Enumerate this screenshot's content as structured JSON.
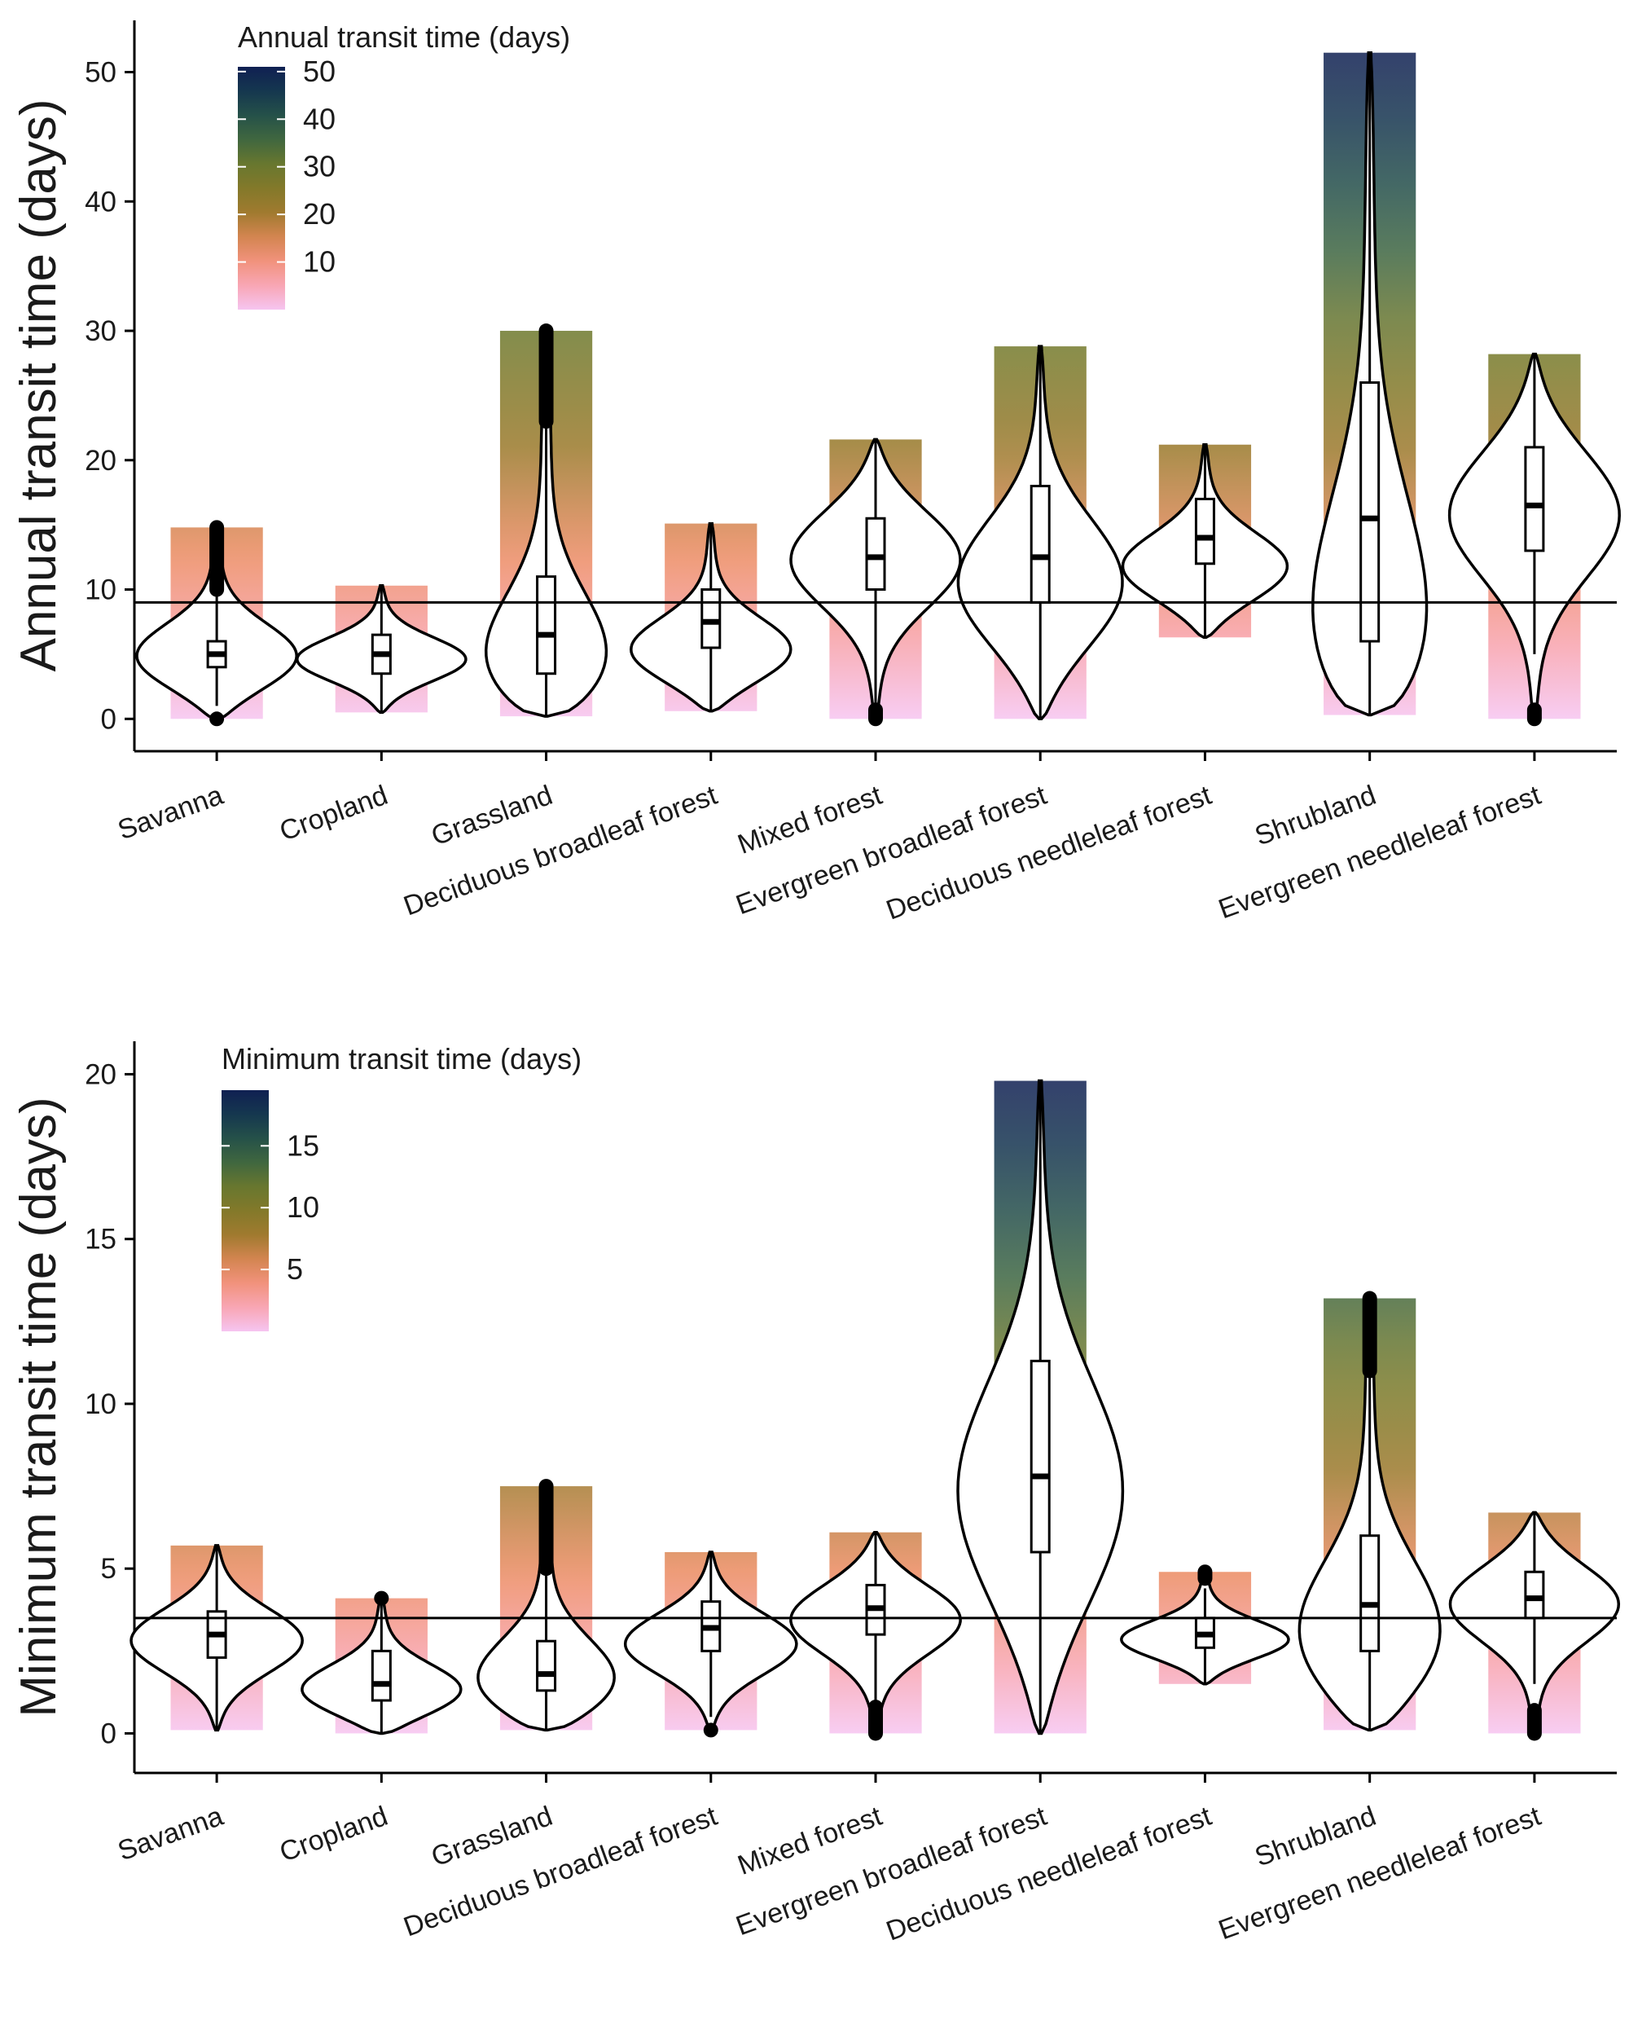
{
  "chart_data": [
    {
      "type": "violin",
      "ylabel": "Annual transit time (days)",
      "ylim": [
        -2.5,
        54
      ],
      "yticks": [
        0,
        10,
        20,
        30,
        40,
        50
      ],
      "reference_line": 9,
      "legend": {
        "title": "Annual transit time (days)",
        "placement": "top-left",
        "ticks": [
          10,
          20,
          30,
          40,
          50
        ],
        "range": [
          0,
          51
        ]
      },
      "categories": [
        "Savanna",
        "Cropland",
        "Grassland",
        "Deciduous broadleaf forest",
        "Mixed forest",
        "Evergreen broadleaf forest",
        "Deciduous needleleaf forest",
        "Shrubland",
        "Evergreen needleleaf forest"
      ],
      "groups": [
        {
          "min": 0,
          "max": 14.8,
          "q1": 4,
          "median": 5,
          "q3": 6,
          "whisker_low": 1,
          "whisker_high": 10,
          "outliers_low": [
            0
          ],
          "outliers_high": [
            10,
            14.8
          ],
          "mode": 4.5
        },
        {
          "min": 0.5,
          "max": 10.3,
          "q1": 3.5,
          "median": 5,
          "q3": 6.5,
          "whisker_low": 0.5,
          "whisker_high": 10.3,
          "outliers_low": [],
          "outliers_high": [],
          "mode": 4.5
        },
        {
          "min": 0.2,
          "max": 30,
          "q1": 3.5,
          "median": 6.5,
          "q3": 11,
          "whisker_low": 0.2,
          "whisker_high": 23,
          "outliers_low": [],
          "outliers_high": [
            23,
            30
          ],
          "mode": 3
        },
        {
          "min": 0.6,
          "max": 15.1,
          "q1": 5.5,
          "median": 7.5,
          "q3": 10,
          "whisker_low": 0.6,
          "whisker_high": 15.1,
          "outliers_low": [],
          "outliers_high": [],
          "mode": 5
        },
        {
          "min": 0,
          "max": 21.6,
          "q1": 10,
          "median": 12.5,
          "q3": 15.5,
          "whisker_low": 1,
          "whisker_high": 21.6,
          "outliers_low": [
            0,
            0.7
          ],
          "outliers_high": [],
          "mode": 12.5
        },
        {
          "min": 0,
          "max": 28.8,
          "q1": 9,
          "median": 12.5,
          "q3": 18,
          "whisker_low": 0,
          "whisker_high": 28.8,
          "outliers_low": [],
          "outliers_high": [],
          "mode": 10
        },
        {
          "min": 6.3,
          "max": 21.2,
          "q1": 12,
          "median": 14,
          "q3": 17,
          "whisker_low": 6.3,
          "whisker_high": 21.2,
          "outliers_low": [],
          "outliers_high": [],
          "mode": 11.5
        },
        {
          "min": 0.3,
          "max": 51.5,
          "q1": 6,
          "median": 15.5,
          "q3": 26,
          "whisker_low": 0.3,
          "whisker_high": 51.5,
          "outliers_low": [],
          "outliers_high": [],
          "mode": 3
        },
        {
          "min": 0,
          "max": 28.2,
          "q1": 13,
          "median": 16.5,
          "q3": 21,
          "whisker_low": 5,
          "whisker_high": 28.2,
          "outliers_low": [
            0,
            0.7
          ],
          "outliers_high": [],
          "mode": 16
        }
      ]
    },
    {
      "type": "violin",
      "ylabel": "Minimum transit time (days)",
      "ylim": [
        -1.2,
        21
      ],
      "yticks": [
        0,
        5,
        10,
        15,
        20
      ],
      "reference_line": 3.5,
      "legend": {
        "title": "Minimum transit time (days)",
        "placement": "top-left",
        "ticks": [
          5,
          10,
          15
        ],
        "range": [
          0,
          19.5
        ]
      },
      "categories": [
        "Savanna",
        "Cropland",
        "Grassland",
        "Deciduous broadleaf forest",
        "Mixed forest",
        "Evergreen broadleaf forest",
        "Deciduous needleleaf forest",
        "Shrubland",
        "Evergreen needleleaf forest"
      ],
      "groups": [
        {
          "min": 0.1,
          "max": 5.7,
          "q1": 2.3,
          "median": 3,
          "q3": 3.7,
          "whisker_low": 0.1,
          "whisker_high": 5.7,
          "outliers_low": [],
          "outliers_high": [],
          "mode": 2.8
        },
        {
          "min": 0,
          "max": 4.1,
          "q1": 1,
          "median": 1.5,
          "q3": 2.5,
          "whisker_low": 0,
          "whisker_high": 4,
          "outliers_low": [],
          "outliers_high": [
            4.1
          ],
          "mode": 1.2
        },
        {
          "min": 0.1,
          "max": 7.5,
          "q1": 1.3,
          "median": 1.8,
          "q3": 2.8,
          "whisker_low": 0.1,
          "whisker_high": 5,
          "outliers_low": [],
          "outliers_high": [
            5,
            7.5
          ],
          "mode": 1.3
        },
        {
          "min": 0.1,
          "max": 5.5,
          "q1": 2.5,
          "median": 3.2,
          "q3": 4,
          "whisker_low": 0.5,
          "whisker_high": 5.5,
          "outliers_low": [
            0.1
          ],
          "outliers_high": [],
          "mode": 2.7
        },
        {
          "min": 0,
          "max": 6.1,
          "q1": 3,
          "median": 3.8,
          "q3": 4.5,
          "whisker_low": 0.8,
          "whisker_high": 6.1,
          "outliers_low": [
            0,
            0.8
          ],
          "outliers_high": [],
          "mode": 3.5
        },
        {
          "min": 0,
          "max": 19.8,
          "q1": 5.5,
          "median": 7.8,
          "q3": 11.3,
          "whisker_low": 0,
          "whisker_high": 19.8,
          "outliers_low": [],
          "outliers_high": [],
          "mode": 7
        },
        {
          "min": 1.5,
          "max": 4.9,
          "q1": 2.6,
          "median": 3,
          "q3": 3.5,
          "whisker_low": 1.5,
          "whisker_high": 4.4,
          "outliers_low": [],
          "outliers_high": [
            4.7,
            4.9
          ],
          "mode": 2.8
        },
        {
          "min": 0.1,
          "max": 13.2,
          "q1": 2.5,
          "median": 3.9,
          "q3": 6,
          "whisker_low": 0.1,
          "whisker_high": 11,
          "outliers_low": [],
          "outliers_high": [
            11,
            13.2
          ],
          "mode": 2.5
        },
        {
          "min": 0,
          "max": 6.7,
          "q1": 3.5,
          "median": 4.1,
          "q3": 4.9,
          "whisker_low": 1.5,
          "whisker_high": 6.7,
          "outliers_low": [
            0,
            0.7
          ],
          "outliers_high": [],
          "mode": 4
        }
      ]
    }
  ]
}
